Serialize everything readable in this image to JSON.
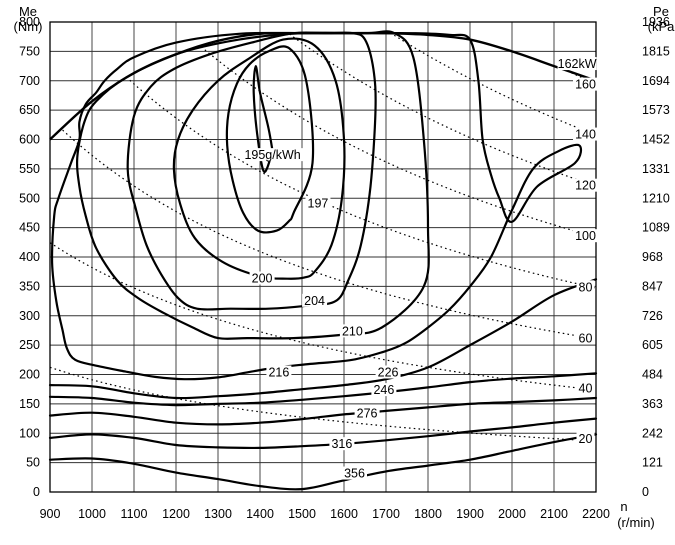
{
  "chart_data": {
    "type": "line",
    "title": "",
    "xlabel_lines": [
      "n",
      "(r/min)"
    ],
    "ylabel_left_lines": [
      "Me",
      "(Nm)"
    ],
    "ylabel_right_lines": [
      "Pe",
      "(kPa"
    ],
    "xlim": [
      900,
      2200
    ],
    "ylim": [
      0,
      800
    ],
    "grid": true,
    "x_ticks": [
      "900",
      "1000",
      "1100",
      "1200",
      "1300",
      "1400",
      "1500",
      "1600",
      "1700",
      "1800",
      "1900",
      "2000",
      "2100",
      "2200"
    ],
    "y_ticks_left": [
      "0",
      "50",
      "100",
      "150",
      "200",
      "250",
      "300",
      "350",
      "400",
      "450",
      "500",
      "550",
      "600",
      "650",
      "700",
      "750",
      "800"
    ],
    "y_ticks_right": [
      "0",
      "121",
      "242",
      "363",
      "484",
      "605",
      "726",
      "847",
      "968",
      "1089",
      "1210",
      "1331",
      "1452",
      "1573",
      "1694",
      "1815",
      "1936"
    ],
    "full_load_curve": {
      "x": [
        900,
        1000,
        1100,
        1200,
        1300,
        1400,
        1500,
        1600,
        1700,
        1800,
        1900,
        2000,
        2100,
        2200
      ],
      "y": [
        600,
        665,
        713,
        745,
        768,
        780,
        781,
        781,
        781,
        778,
        770,
        750,
        725,
        700
      ]
    },
    "bsfc_contours": [
      {
        "label": "195g/kWh",
        "x": [
          1430,
          1420,
          1400,
          1390,
          1385,
          1395,
          1410,
          1430
        ],
        "y": [
          580,
          620,
          680,
          725,
          680,
          600,
          545,
          580
        ],
        "label_x": 1430,
        "label_y": 570
      },
      {
        "label": "197",
        "x": [
          1470,
          1440,
          1395,
          1360,
          1335,
          1322,
          1325,
          1345,
          1375,
          1420,
          1470,
          1510,
          1525,
          1480
        ],
        "y": [
          462,
          445,
          445,
          475,
          530,
          590,
          645,
          695,
          728,
          750,
          755,
          700,
          560,
          475
        ],
        "label_x": 1538,
        "label_y": 488
      },
      {
        "label": "200",
        "x": [
          1505,
          1465,
          1400,
          1310,
          1245,
          1210,
          1195,
          1205,
          1240,
          1300,
          1370,
          1455,
          1530,
          1580,
          1600,
          1595,
          1570,
          1530
        ],
        "y": [
          365,
          363,
          367,
          392,
          432,
          490,
          550,
          600,
          650,
          700,
          736,
          770,
          760,
          700,
          600,
          500,
          420,
          375
        ],
        "label_x": 1405,
        "label_y": 360
      },
      {
        "label": "204",
        "x": [
          1580,
          1510,
          1420,
          1330,
          1250,
          1205,
          1165,
          1130,
          1105,
          1085,
          1100,
          1140,
          1195,
          1280,
          1380,
          1480,
          1560,
          1620,
          1650,
          1670,
          1675,
          1663,
          1640,
          1610
        ],
        "y": [
          325,
          317,
          312,
          312,
          312,
          330,
          370,
          420,
          480,
          550,
          640,
          690,
          720,
          745,
          765,
          781,
          781,
          781,
          770,
          720,
          650,
          520,
          420,
          360
        ],
        "label_x": 1530,
        "label_y": 322
      },
      {
        "label": "210",
        "x": [
          1690,
          1600,
          1480,
          1370,
          1300,
          1240,
          1170,
          1110,
          1060,
          1010,
          985,
          970,
          965,
          982,
          1010,
          1080,
          1200,
          1350,
          1500,
          1650,
          1720,
          1765,
          1790,
          1800,
          1790
        ],
        "y": [
          280,
          268,
          262,
          262,
          262,
          280,
          305,
          330,
          360,
          415,
          470,
          520,
          570,
          630,
          665,
          705,
          745,
          770,
          781,
          781,
          781,
          740,
          600,
          450,
          350
        ],
        "label_x": 1620,
        "label_y": 270
      },
      {
        "label": "216",
        "x": [
          1700,
          1620,
          1520,
          1440,
          1380,
          1300,
          1220,
          1150,
          1080,
          1010,
          960,
          940,
          930,
          915,
          905,
          910,
          920,
          950,
          970,
          970,
          985,
          1010,
          1030,
          1060,
          1100,
          1200,
          1350,
          1500,
          1650,
          1770,
          1850,
          1900,
          1920,
          1930,
          1950,
          1970,
          2000,
          2060,
          2150,
          2160,
          2110,
          2050,
          2000,
          1950,
          1900,
          1850,
          1800,
          1750
        ],
        "y": [
          240,
          225,
          218,
          212,
          205,
          195,
          192,
          196,
          205,
          215,
          225,
          245,
          275,
          325,
          390,
          470,
          500,
          560,
          600,
          630,
          660,
          680,
          700,
          720,
          740,
          765,
          780,
          781,
          781,
          781,
          778,
          770,
          700,
          600,
          540,
          500,
          460,
          520,
          560,
          590,
          580,
          550,
          480,
          400,
          350,
          310,
          280,
          255
        ],
        "label_x": 1445,
        "label_y": 200
      },
      {
        "label": "226",
        "x": [
          900,
          1000,
          1100,
          1200,
          1300,
          1400,
          1500,
          1600,
          1700,
          1800,
          1900,
          2000,
          2100,
          2200
        ],
        "y": [
          182,
          180,
          168,
          160,
          163,
          168,
          175,
          182,
          192,
          212,
          250,
          290,
          335,
          362
        ],
        "label_x": 1705,
        "label_y": 200
      },
      {
        "label": "246",
        "x": [
          900,
          1000,
          1100,
          1200,
          1300,
          1400,
          1500,
          1600,
          1700,
          1800,
          1900,
          2000,
          2100,
          2200
        ],
        "y": [
          162,
          160,
          152,
          148,
          150,
          152,
          157,
          163,
          170,
          178,
          187,
          193,
          197,
          202
        ],
        "label_x": 1695,
        "label_y": 170
      },
      {
        "label": "276",
        "x": [
          900,
          1000,
          1100,
          1200,
          1300,
          1400,
          1500,
          1600,
          1700,
          1800,
          1900,
          2000,
          2100,
          2200
        ],
        "y": [
          130,
          135,
          128,
          118,
          115,
          118,
          124,
          132,
          138,
          144,
          150,
          153,
          156,
          160
        ],
        "label_x": 1655,
        "label_y": 130
      },
      {
        "label": "316",
        "x": [
          900,
          1000,
          1100,
          1200,
          1300,
          1400,
          1500,
          1600,
          1700,
          1800,
          1900,
          2000,
          2100,
          2200
        ],
        "y": [
          92,
          98,
          92,
          80,
          76,
          75,
          78,
          82,
          88,
          95,
          103,
          110,
          118,
          125
        ],
        "label_x": 1595,
        "label_y": 78
      },
      {
        "label": "356",
        "x": [
          900,
          1000,
          1100,
          1200,
          1300,
          1400,
          1500,
          1600,
          1700,
          1800,
          1900,
          2000,
          2100,
          2200
        ],
        "y": [
          55,
          57,
          48,
          33,
          22,
          10,
          5,
          20,
          35,
          45,
          55,
          70,
          85,
          98
        ],
        "label_x": 1625,
        "label_y": 28
      }
    ],
    "power_lines": [
      {
        "label": "162kW",
        "kW": 162,
        "label_x": 2155,
        "label_y": 725
      },
      {
        "label": "160",
        "kW": 160,
        "label_x": 2175,
        "label_y": 690
      },
      {
        "label": "140",
        "kW": 140,
        "label_x": 2175,
        "label_y": 605
      },
      {
        "label": "120",
        "kW": 120,
        "label_x": 2175,
        "label_y": 518
      },
      {
        "label": "100",
        "kW": 100,
        "label_x": 2175,
        "label_y": 432
      },
      {
        "label": "80",
        "kW": 80,
        "label_x": 2175,
        "label_y": 345
      },
      {
        "label": "60",
        "kW": 60,
        "label_x": 2175,
        "label_y": 258
      },
      {
        "label": "40",
        "kW": 40,
        "label_x": 2175,
        "label_y": 173
      },
      {
        "label": "20",
        "kW": 20,
        "label_x": 2175,
        "label_y": 87
      }
    ]
  }
}
